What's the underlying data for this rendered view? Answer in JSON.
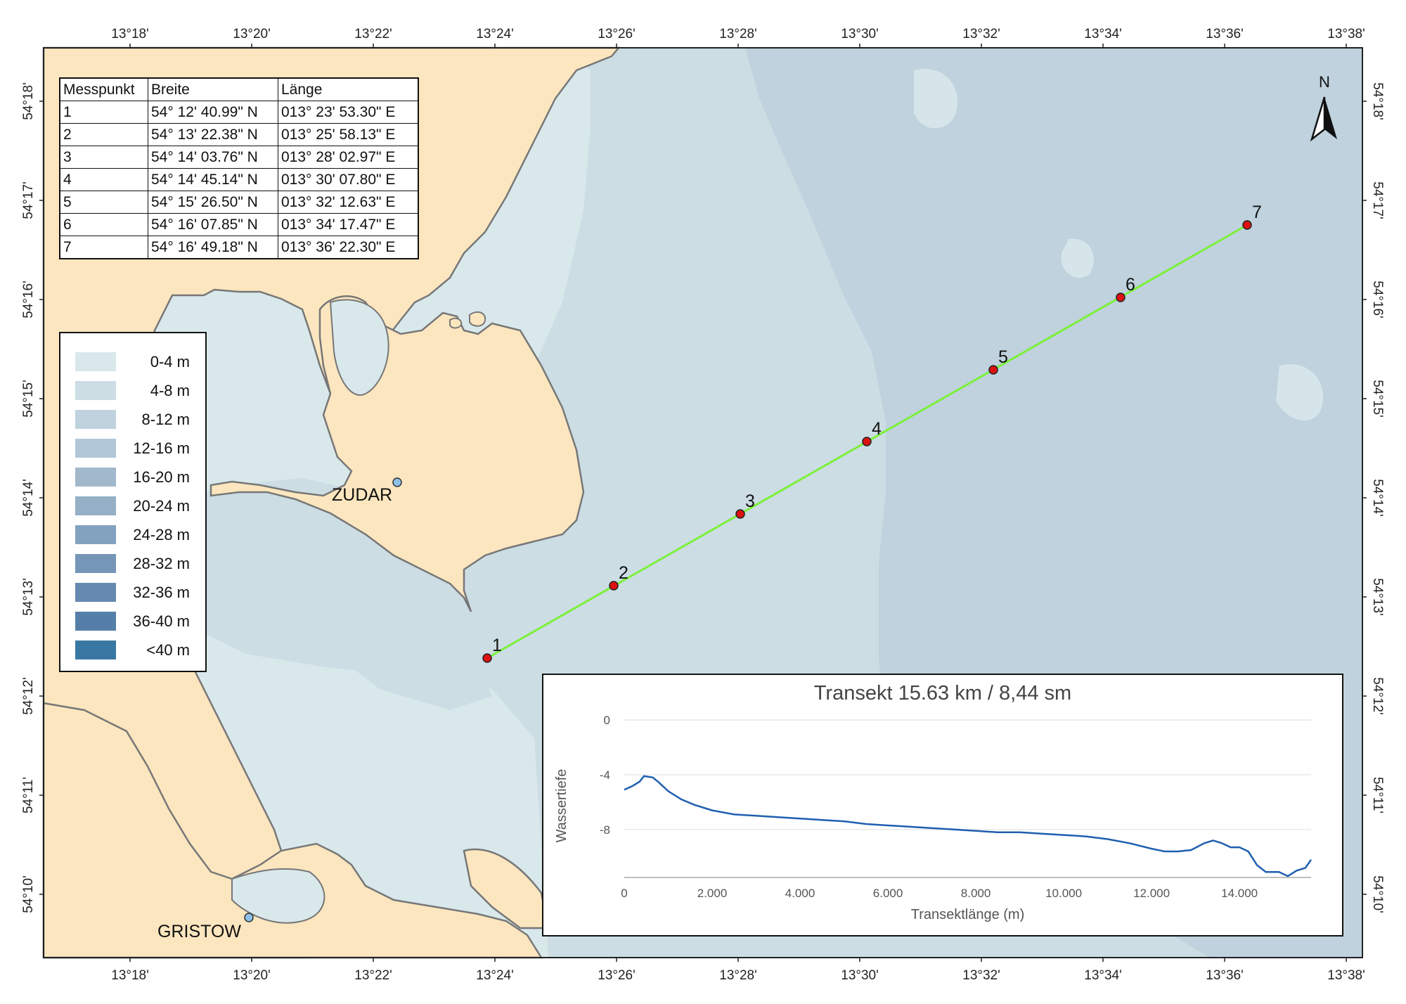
{
  "map": {
    "colors": {
      "land": "#fce6bf",
      "depth_0_4": "#d9e8eb",
      "depth_4_8": "#ccdde4",
      "depth_8_12": "#bfd2dd",
      "coastline": "#777777",
      "transect_line": "#7cf03a",
      "point_fill": "#dd1111",
      "place_marker": "#8fc0e6"
    },
    "lon_ticks": [
      "13°18'",
      "13°20'",
      "13°22'",
      "13°24'",
      "13°26'",
      "13°28'",
      "13°30'",
      "13°32'",
      "13°34'",
      "13°36'",
      "13°38'"
    ],
    "lat_ticks": [
      "54°18'",
      "54°17'",
      "54°16'",
      "54°15'",
      "54°14'",
      "54°13'",
      "54°12'",
      "54°11'",
      "54°10'"
    ],
    "places": [
      {
        "name": "ZUDAR"
      },
      {
        "name": "GRISTOW"
      }
    ],
    "transect_point_labels": [
      "1",
      "2",
      "3",
      "4",
      "5",
      "6",
      "7"
    ]
  },
  "coord_table": {
    "headers": [
      "Messpunkt",
      "Breite",
      "Länge"
    ],
    "rows": [
      [
        "1",
        "54° 12' 40.99\" N",
        "013° 23' 53.30\" E"
      ],
      [
        "2",
        "54° 13' 22.38\" N",
        "013° 25' 58.13\" E"
      ],
      [
        "3",
        "54° 14' 03.76\" N",
        "013° 28' 02.97\" E"
      ],
      [
        "4",
        "54° 14' 45.14\" N",
        "013° 30' 07.80\" E"
      ],
      [
        "5",
        "54° 15' 26.50\" N",
        "013° 32' 12.63\" E"
      ],
      [
        "6",
        "54° 16' 07.85\" N",
        "013° 34' 17.47\" E"
      ],
      [
        "7",
        "54° 16' 49.18\" N",
        "013° 36' 22.30\" E"
      ]
    ]
  },
  "legend": {
    "items": [
      {
        "label": "0-4 m",
        "color": "#d9e8eb"
      },
      {
        "label": "4-8 m",
        "color": "#ccdde4"
      },
      {
        "label": "8-12 m",
        "color": "#bfd2dd"
      },
      {
        "label": "12-16 m",
        "color": "#b2c7d7"
      },
      {
        "label": "16-20 m",
        "color": "#a2b9cc"
      },
      {
        "label": "20-24 m",
        "color": "#94afc6"
      },
      {
        "label": "24-28 m",
        "color": "#83a2bf"
      },
      {
        "label": "28-32 m",
        "color": "#7596b7"
      },
      {
        "label": "32-36 m",
        "color": "#668aaf"
      },
      {
        "label": "36-40 m",
        "color": "#557fa8"
      },
      {
        "label": "<40 m",
        "color": "#3a78a4"
      }
    ]
  },
  "north_arrow": {
    "letter": "N"
  },
  "chart_data": {
    "type": "line",
    "title": "Transekt 15.63 km / 8,44 sm",
    "xlabel": "Transektlänge (m)",
    "ylabel": "Wassertiefe",
    "xlim": [
      0,
      15630
    ],
    "ylim": [
      -11.5,
      0
    ],
    "x_ticks": [
      "0",
      "2.000",
      "4.000",
      "6.000",
      "8.000",
      "10.000",
      "12.000",
      "14.000"
    ],
    "y_ticks": [
      "0",
      "-4",
      "-8"
    ],
    "grid": true,
    "line_color": "#1f5fb0",
    "series": [
      {
        "x": [
          0,
          200,
          350,
          450,
          650,
          800,
          1000,
          1300,
          1600,
          2000,
          2500,
          3000,
          3500,
          4000,
          4500,
          5000,
          5500,
          6000,
          6500,
          7000,
          7500,
          8000,
          8500,
          9000,
          9500,
          10000,
          10500,
          11000,
          11500,
          12000,
          12300,
          12600,
          12900,
          13200,
          13400,
          13600,
          13800,
          14000,
          14200,
          14400,
          14600,
          14900,
          15100,
          15300,
          15500,
          15630
        ],
        "y": [
          -5.1,
          -4.8,
          -4.5,
          -4.1,
          -4.2,
          -4.6,
          -5.2,
          -5.8,
          -6.2,
          -6.6,
          -6.9,
          -7.0,
          -7.1,
          -7.2,
          -7.3,
          -7.4,
          -7.6,
          -7.7,
          -7.8,
          -7.9,
          -8.0,
          -8.1,
          -8.2,
          -8.2,
          -8.3,
          -8.4,
          -8.5,
          -8.7,
          -9.0,
          -9.4,
          -9.6,
          -9.6,
          -9.5,
          -9.0,
          -8.8,
          -9.0,
          -9.3,
          -9.3,
          -9.6,
          -10.6,
          -11.1,
          -11.1,
          -11.4,
          -11.0,
          -10.8,
          -10.2
        ]
      }
    ]
  }
}
